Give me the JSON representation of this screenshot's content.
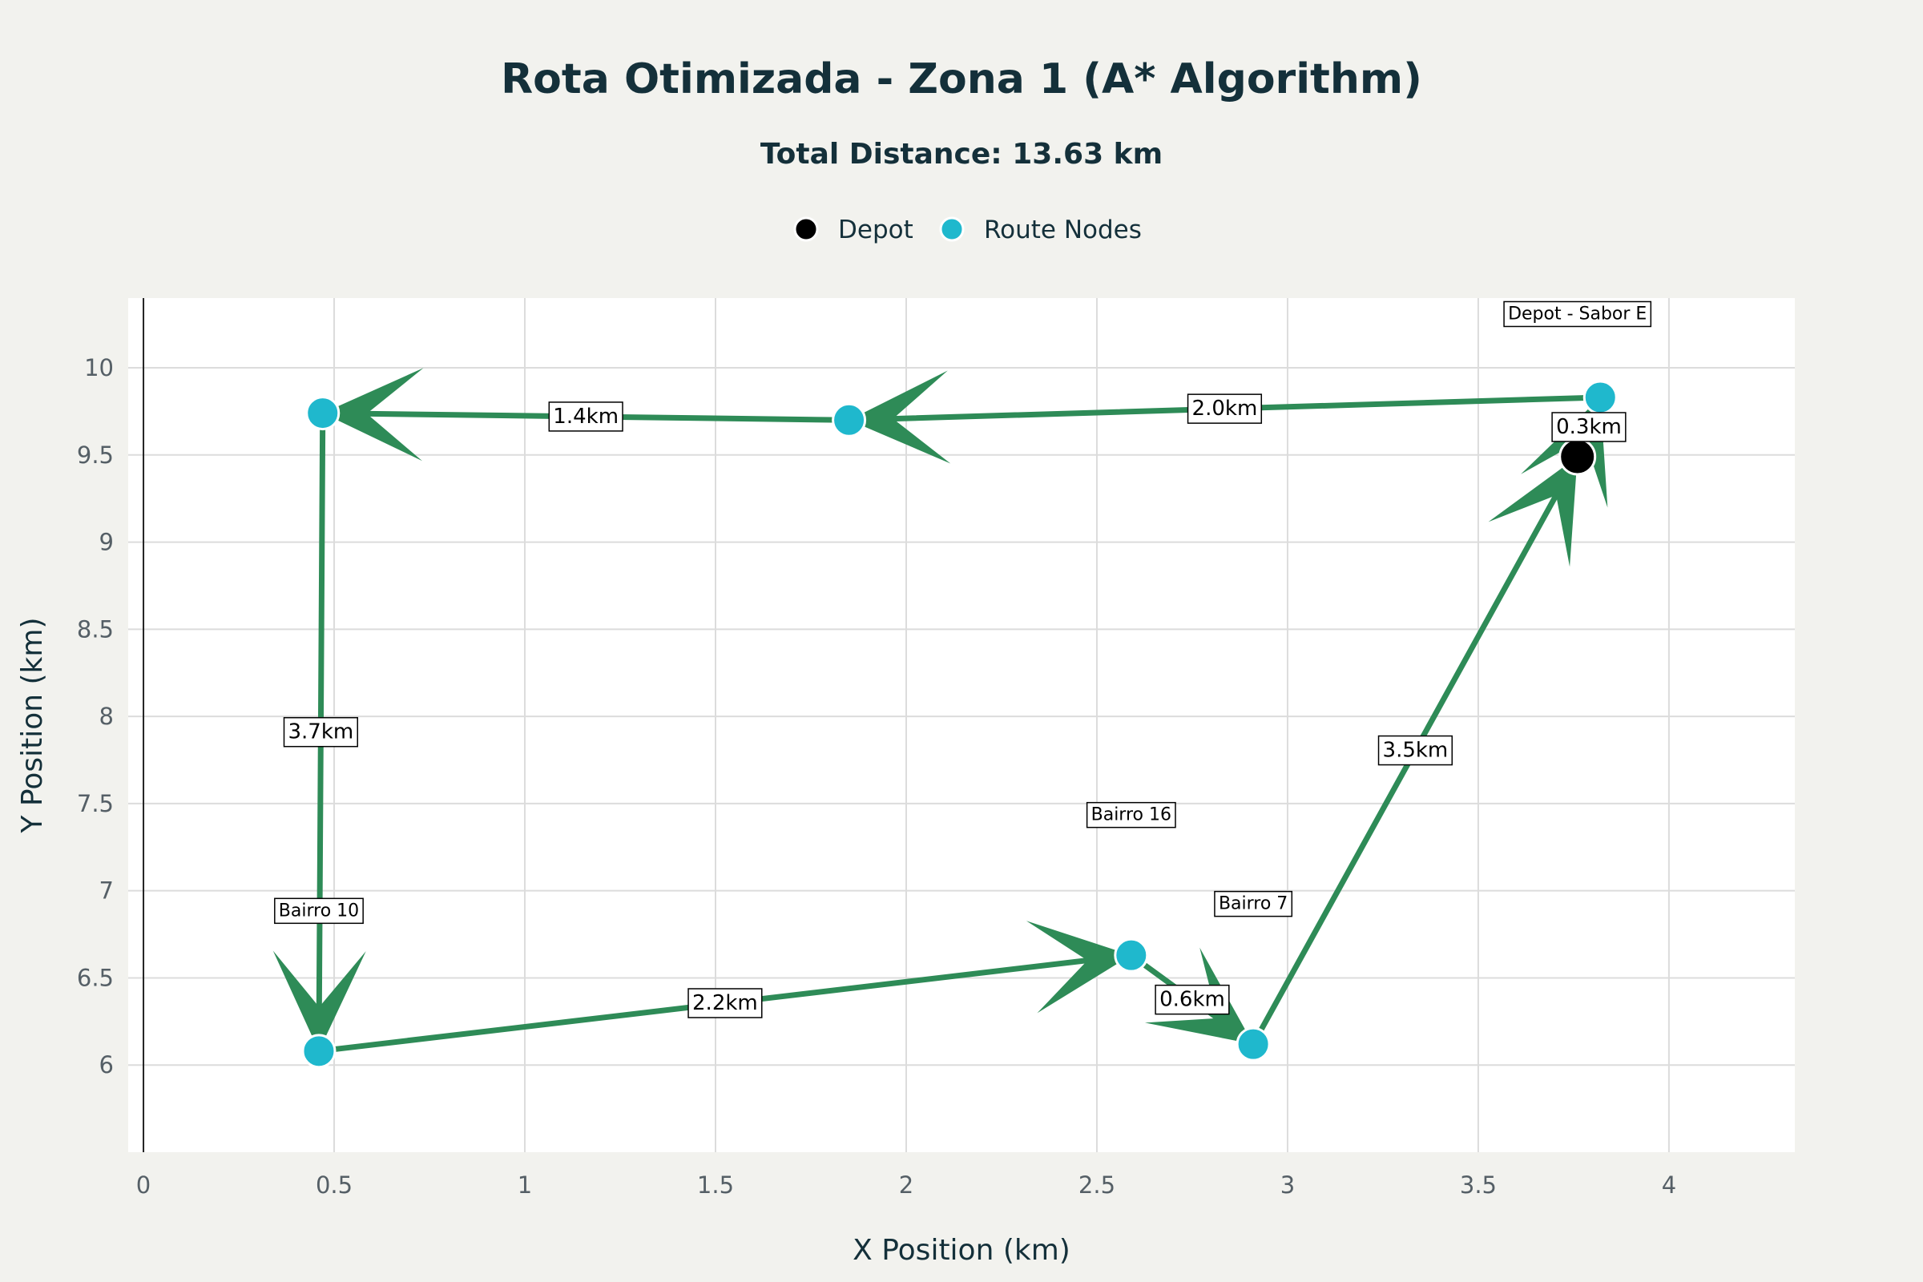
{
  "chart_data": {
    "type": "scatter",
    "title": "Rota Otimizada - Zona 1 (A* Algorithm)",
    "subtitle": "Total Distance: 13.63 km",
    "xlabel": "X Position (km)",
    "ylabel": "Y Position (km)",
    "xlim": [
      -0.04,
      4.33
    ],
    "ylim": [
      5.5,
      10.4
    ],
    "x_ticks": [
      0,
      0.5,
      1,
      1.5,
      2,
      2.5,
      3,
      3.5,
      4
    ],
    "x_tick_labels": [
      "0",
      "0.5",
      "1",
      "1.5",
      "2",
      "2.5",
      "3",
      "3.5",
      "4"
    ],
    "y_ticks": [
      6,
      6.5,
      7,
      7.5,
      8,
      8.5,
      9,
      9.5,
      10
    ],
    "y_tick_labels": [
      "6",
      "6.5",
      "7",
      "7.5",
      "8",
      "8.5",
      "9",
      "9.5",
      "10"
    ],
    "grid": true,
    "legend_position": "top-center",
    "legend": [
      {
        "name": "Depot",
        "color": "#000000"
      },
      {
        "name": "Route Nodes",
        "color": "#1fb8cd"
      }
    ],
    "route_color": "#2e8b57",
    "depot": {
      "x": 3.76,
      "y": 9.49,
      "label": "Depot - Sabor E"
    },
    "route_nodes": [
      {
        "x": 3.82,
        "y": 9.83,
        "label": ""
      },
      {
        "x": 1.85,
        "y": 9.7,
        "label": ""
      },
      {
        "x": 0.47,
        "y": 9.74,
        "label": ""
      },
      {
        "x": 0.46,
        "y": 6.08,
        "label": "Bairro 10"
      },
      {
        "x": 2.59,
        "y": 6.63,
        "label": "Bairro 16"
      },
      {
        "x": 2.91,
        "y": 6.12,
        "label": "Bairro 7"
      }
    ],
    "segments": [
      {
        "from": [
          3.76,
          9.49
        ],
        "to": [
          3.82,
          9.83
        ],
        "label": "0.3km"
      },
      {
        "from": [
          3.82,
          9.83
        ],
        "to": [
          1.85,
          9.7
        ],
        "label": "2.0km"
      },
      {
        "from": [
          1.85,
          9.7
        ],
        "to": [
          0.47,
          9.74
        ],
        "label": "1.4km"
      },
      {
        "from": [
          0.47,
          9.74
        ],
        "to": [
          0.46,
          6.08
        ],
        "label": "3.7km"
      },
      {
        "from": [
          0.46,
          6.08
        ],
        "to": [
          2.59,
          6.63
        ],
        "label": "2.2km"
      },
      {
        "from": [
          2.59,
          6.63
        ],
        "to": [
          2.91,
          6.12
        ],
        "label": "0.6km"
      },
      {
        "from": [
          2.91,
          6.12
        ],
        "to": [
          3.76,
          9.49
        ],
        "label": "3.5km"
      }
    ]
  }
}
